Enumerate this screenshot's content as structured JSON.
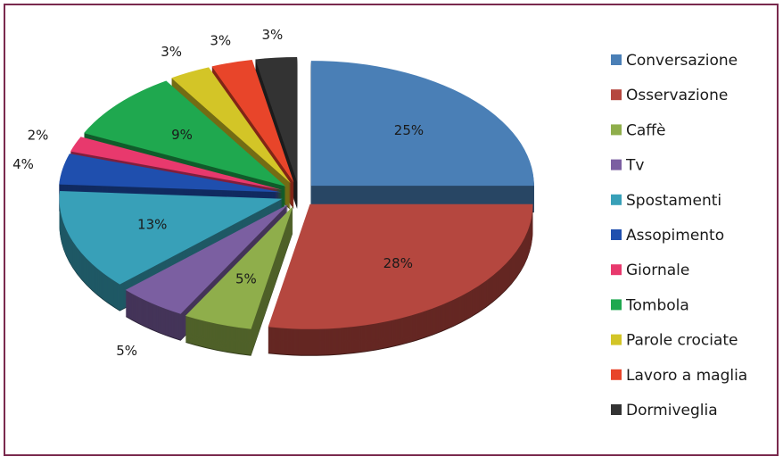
{
  "chart_data": {
    "type": "pie",
    "categories": [
      "Conversazione",
      "Osservazione",
      "Caffè",
      "Tv",
      "Spostamenti",
      "Assopimento",
      "Giornale",
      "Tombola",
      "Parole crociate",
      "Lavoro a maglia",
      "Dormiveglia"
    ],
    "values": [
      25,
      28,
      5,
      5,
      13,
      4,
      2,
      9,
      3,
      3,
      3
    ],
    "value_labels": [
      "25%",
      "28%",
      "5%",
      "5%",
      "13%",
      "4%",
      "2%",
      "9%",
      "3%",
      "3%",
      "3%"
    ],
    "colors": [
      "#4a7fb6",
      "#b5473f",
      "#8fae4b",
      "#7b5fa1",
      "#38a0b8",
      "#1f4fae",
      "#e8396d",
      "#1fa84f",
      "#d3c527",
      "#e8452a",
      "#333333"
    ],
    "legend": "right"
  }
}
